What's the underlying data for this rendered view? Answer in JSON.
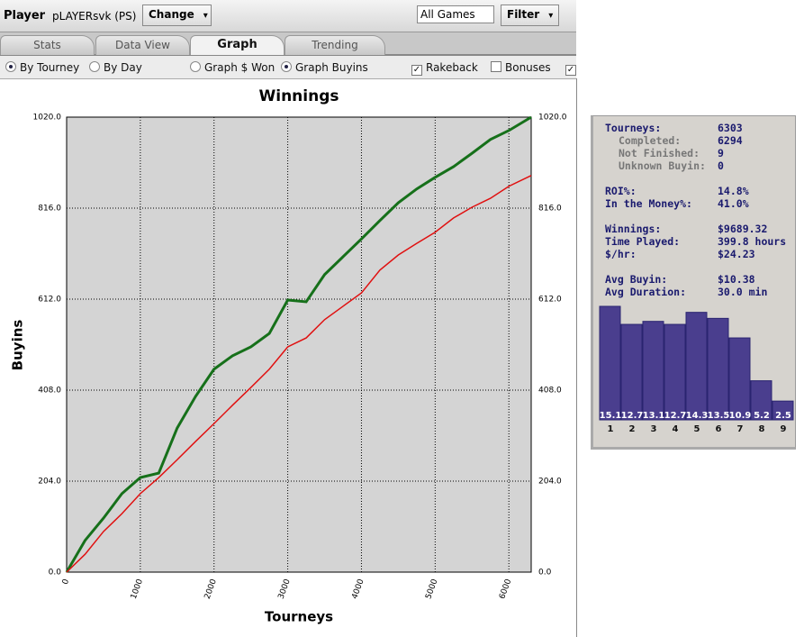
{
  "toolbar": {
    "player_label": "Player",
    "player_name": "pLAYERsvk (PS)",
    "change_button": "Change",
    "games_select": "All Games",
    "filter_button": "Filter"
  },
  "tabs": [
    "Stats",
    "Data View",
    "Graph",
    "Trending"
  ],
  "options": {
    "by_tourney": "By Tourney",
    "by_day": "By Day",
    "graph_won": "Graph $ Won",
    "graph_buyins": "Graph Buyins",
    "rakeback": "Rakeback",
    "bonuses": "Bonuses"
  },
  "chart_data": [
    {
      "type": "line",
      "title": "Winnings",
      "x_label": "Tourneys",
      "y_label": "Buyins",
      "x": [
        0,
        250,
        500,
        750,
        1000,
        1250,
        1500,
        1750,
        2000,
        2250,
        2500,
        2750,
        3000,
        3250,
        3500,
        3750,
        4000,
        4250,
        4500,
        4750,
        5000,
        5250,
        5500,
        5750,
        6000,
        6303
      ],
      "series": [
        {
          "color": "#16701a",
          "values": [
            0,
            71,
            121,
            176,
            212,
            222,
            323,
            394,
            455,
            485,
            505,
            535,
            610,
            606,
            667,
            707,
            747,
            788,
            828,
            859,
            885,
            909,
            939,
            970,
            990,
            1020
          ]
        },
        {
          "color": "#e01010",
          "values": [
            0,
            40,
            91,
            131,
            176,
            212,
            252,
            293,
            333,
            374,
            414,
            455,
            505,
            525,
            566,
            596,
            626,
            677,
            711,
            737,
            762,
            794,
            818,
            838,
            865,
            889
          ]
        }
      ],
      "xlim": [
        0,
        6303
      ],
      "xticks": [
        0,
        1000,
        2000,
        3000,
        4000,
        5000,
        6000
      ],
      "ylim": [
        0,
        1020
      ],
      "yticks": [
        {
          "value": 0,
          "label": "0.0"
        },
        {
          "value": 204,
          "label": "204.0"
        },
        {
          "value": 408,
          "label": "408.0"
        },
        {
          "value": 612,
          "label": "612.0"
        },
        {
          "value": 816,
          "label": "816.0"
        },
        {
          "value": 1020,
          "label": "1020.0"
        }
      ],
      "grid": true
    },
    {
      "type": "bar",
      "categories": [
        "1",
        "2",
        "3",
        "4",
        "5",
        "6",
        "7",
        "8",
        "9"
      ],
      "values": [
        15.1,
        12.7,
        13.1,
        12.7,
        14.3,
        13.5,
        10.9,
        5.2,
        2.5
      ],
      "color": "#4a3e8e"
    }
  ],
  "stats": [
    {
      "label": "Tourneys:",
      "value": "6303"
    },
    {
      "label": "Completed:",
      "value": "6294"
    },
    {
      "label": "Not Finished:",
      "value": "9"
    },
    {
      "label": "Unknown Buyin:",
      "value": "0"
    },
    {
      "label": "ROI%:",
      "value": "14.8%"
    },
    {
      "label": "In the Money%:",
      "value": "41.0%"
    },
    {
      "label": "Winnings:",
      "value": "$9689.32"
    },
    {
      "label": "Time Played:",
      "value": "399.8 hours"
    },
    {
      "label": "$/hr:",
      "value": "$24.23"
    },
    {
      "label": "Avg Buyin:",
      "value": "$10.38"
    },
    {
      "label": "Avg Duration:",
      "value": "30.0 min"
    }
  ]
}
